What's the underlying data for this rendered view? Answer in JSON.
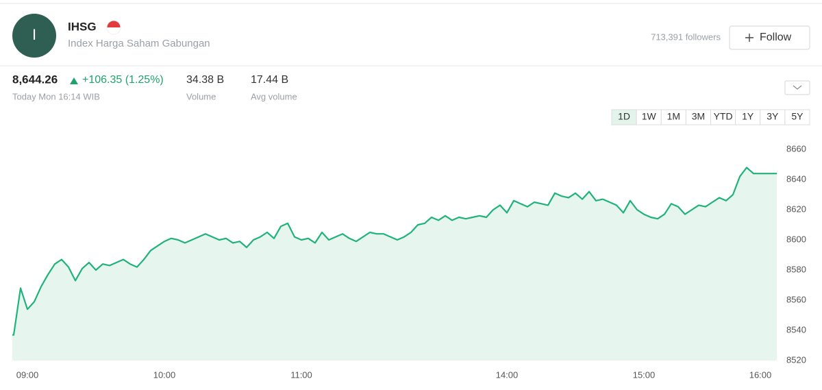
{
  "header": {
    "avatar_letter": "I",
    "symbol": "IHSG",
    "name": "Index Harga Saham Gabungan",
    "followers": "713,391 followers",
    "follow_button": "Follow"
  },
  "quote": {
    "price": "8,644.26",
    "change": "+106.35 (1.25%)",
    "time": "Today Mon 16:14 WIB",
    "volume": "34.38 B",
    "volume_label": "Volume",
    "avg_volume": "17.44 B",
    "avg_volume_label": "Avg volume"
  },
  "ranges": [
    "1D",
    "1W",
    "1M",
    "3M",
    "YTD",
    "1Y",
    "3Y",
    "5Y"
  ],
  "chart_data": {
    "type": "line",
    "color": "#1fb27a",
    "fill_color": "#e6f6ef",
    "grid": false,
    "categories": [
      null,
      null,
      "09:00",
      null,
      null,
      null,
      null,
      null,
      null,
      null,
      null,
      null,
      null,
      null,
      null,
      null,
      null,
      null,
      null,
      null,
      null,
      null,
      "10:00",
      null,
      null,
      null,
      null,
      null,
      null,
      null,
      null,
      null,
      null,
      null,
      null,
      null,
      null,
      null,
      null,
      null,
      null,
      null,
      "11:00",
      null,
      null,
      null,
      null,
      null,
      null,
      null,
      null,
      null,
      null,
      null,
      null,
      null,
      null,
      null,
      null,
      null,
      null,
      null,
      null,
      null,
      null,
      null,
      null,
      null,
      null,
      null,
      null,
      null,
      "14:00",
      null,
      null,
      null,
      null,
      null,
      null,
      null,
      null,
      null,
      null,
      null,
      null,
      null,
      null,
      null,
      null,
      null,
      null,
      null,
      "15:00",
      null,
      null,
      null,
      null,
      null,
      null,
      null,
      null,
      null,
      null,
      null,
      null,
      null,
      null,
      null,
      null,
      "16:00",
      null,
      null
    ],
    "values": [
      8537,
      8568,
      8554,
      8559,
      8569,
      8577,
      8584,
      8587,
      8582,
      8573,
      8581,
      8585,
      8580,
      8584,
      8583,
      8585,
      8587,
      8584,
      8582,
      8587,
      8593,
      8596,
      8599,
      8601,
      8600,
      8598,
      8600,
      8602,
      8604,
      8602,
      8600,
      8601,
      8598,
      8599,
      8595,
      8600,
      8602,
      8605,
      8601,
      8609,
      8611,
      8602,
      8600,
      8601,
      8598,
      8605,
      8600,
      8602,
      8604,
      8601,
      8599,
      8602,
      8605,
      8604,
      8604,
      8602,
      8600,
      8602,
      8605,
      8610,
      8611,
      8615,
      8613,
      8616,
      8613,
      8615,
      8614,
      8615,
      8616,
      8615,
      8620,
      8623,
      8618,
      8626,
      8624,
      8622,
      8625,
      8624,
      8623,
      8631,
      8629,
      8628,
      8631,
      8627,
      8632,
      8626,
      8627,
      8625,
      8623,
      8618,
      8626,
      8620,
      8617,
      8615,
      8614,
      8617,
      8624,
      8622,
      8617,
      8620,
      8623,
      8622,
      8625,
      8628,
      8626,
      8630,
      8642,
      8648,
      8644,
      8644,
      8644,
      8644
    ],
    "ylim": [
      8520,
      8670
    ],
    "yticks": [
      8520,
      8540,
      8560,
      8580,
      8600,
      8620,
      8640,
      8660
    ]
  }
}
